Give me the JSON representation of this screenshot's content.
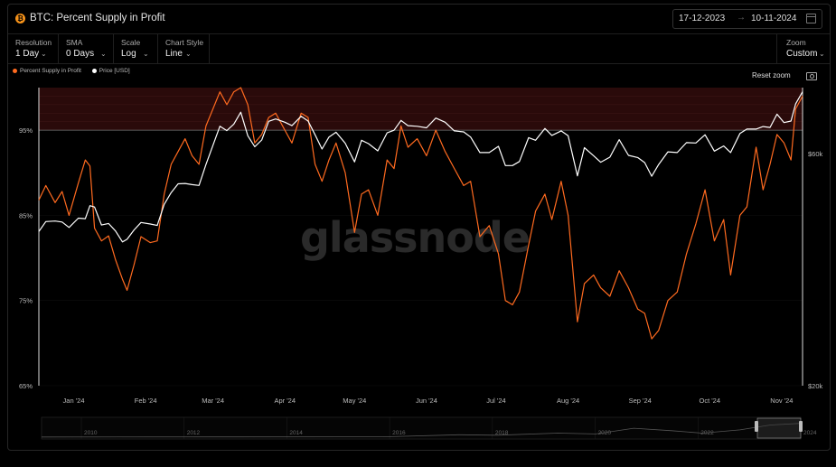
{
  "header": {
    "asset_icon": "bitcoin-icon",
    "title": "BTC: Percent Supply in Profit",
    "date_start": "17-12-2023",
    "date_arrow": "→",
    "date_end": "10-11-2024"
  },
  "controls": {
    "resolution": {
      "label": "Resolution",
      "value": "1 Day"
    },
    "sma": {
      "label": "SMA",
      "value": "0 Days"
    },
    "scale": {
      "label": "Scale",
      "value": "Log"
    },
    "chart_style": {
      "label": "Chart Style",
      "value": "Line"
    },
    "zoom": {
      "label": "Zoom",
      "value": "Custom"
    }
  },
  "actions": {
    "reset_zoom": "Reset zoom"
  },
  "watermark": "glassnode",
  "colors": {
    "profit_line": "#ff6a1f",
    "price_line": "#ffffff",
    "band_fill": "#2a0a0a"
  },
  "chart_data": {
    "type": "line",
    "title": "BTC: Percent Supply in Profit",
    "x_axis": {
      "type": "date",
      "range": [
        "2023-12-17",
        "2024-11-10"
      ],
      "tick_labels": [
        "Jan '24",
        "Feb '24",
        "Mar '24",
        "Apr '24",
        "May '24",
        "Jun '24",
        "Jul '24",
        "Aug '24",
        "Sep '24",
        "Oct '24",
        "Nov '24"
      ],
      "tick_dates": [
        "2024-01-01",
        "2024-02-01",
        "2024-03-01",
        "2024-04-01",
        "2024-05-01",
        "2024-06-01",
        "2024-07-01",
        "2024-08-01",
        "2024-09-01",
        "2024-10-01",
        "2024-11-01"
      ]
    },
    "y_left": {
      "ticks": [
        65,
        75,
        85,
        95
      ],
      "tick_labels": [
        "65%",
        "75%",
        "85%",
        "95%"
      ],
      "range": [
        65,
        100
      ]
    },
    "y_right": {
      "scale": "log",
      "ticks": [
        20000,
        60000
      ],
      "tick_labels": [
        "$20k",
        "$60k"
      ],
      "range": [
        20000,
        82000
      ]
    },
    "band": {
      "from": 95,
      "to": 100
    },
    "legend_position": "top-left",
    "series": [
      {
        "name": "Percent Supply in Profit",
        "axis": "left",
        "color": "#ff6a1f",
        "points": [
          [
            "2023-12-17",
            86.8
          ],
          [
            "2023-12-20",
            88.5
          ],
          [
            "2023-12-24",
            86.5
          ],
          [
            "2023-12-27",
            87.8
          ],
          [
            "2023-12-30",
            85.0
          ],
          [
            "2024-01-03",
            88.8
          ],
          [
            "2024-01-06",
            91.5
          ],
          [
            "2024-01-08",
            90.8
          ],
          [
            "2024-01-10",
            83.5
          ],
          [
            "2024-01-13",
            82.0
          ],
          [
            "2024-01-16",
            82.6
          ],
          [
            "2024-01-19",
            79.8
          ],
          [
            "2024-01-22",
            77.5
          ],
          [
            "2024-01-24",
            76.2
          ],
          [
            "2024-01-27",
            79.2
          ],
          [
            "2024-01-30",
            82.5
          ],
          [
            "2024-02-03",
            81.8
          ],
          [
            "2024-02-06",
            82.0
          ],
          [
            "2024-02-09",
            87.5
          ],
          [
            "2024-02-12",
            91.0
          ],
          [
            "2024-02-15",
            92.5
          ],
          [
            "2024-02-18",
            94.0
          ],
          [
            "2024-02-21",
            92.0
          ],
          [
            "2024-02-24",
            91.0
          ],
          [
            "2024-02-27",
            95.5
          ],
          [
            "2024-03-01",
            97.5
          ],
          [
            "2024-03-04",
            99.5
          ],
          [
            "2024-03-07",
            98.0
          ],
          [
            "2024-03-10",
            99.5
          ],
          [
            "2024-03-13",
            100.0
          ],
          [
            "2024-03-16",
            98.0
          ],
          [
            "2024-03-19",
            93.5
          ],
          [
            "2024-03-22",
            94.5
          ],
          [
            "2024-03-25",
            96.5
          ],
          [
            "2024-03-28",
            97.0
          ],
          [
            "2024-04-01",
            95.0
          ],
          [
            "2024-04-04",
            93.5
          ],
          [
            "2024-04-08",
            97.0
          ],
          [
            "2024-04-11",
            96.5
          ],
          [
            "2024-04-14",
            91.0
          ],
          [
            "2024-04-17",
            89.0
          ],
          [
            "2024-04-20",
            91.5
          ],
          [
            "2024-04-23",
            93.5
          ],
          [
            "2024-04-27",
            90.0
          ],
          [
            "2024-05-01",
            83.0
          ],
          [
            "2024-05-04",
            87.5
          ],
          [
            "2024-05-07",
            88.0
          ],
          [
            "2024-05-11",
            85.0
          ],
          [
            "2024-05-15",
            91.5
          ],
          [
            "2024-05-18",
            90.5
          ],
          [
            "2024-05-21",
            95.5
          ],
          [
            "2024-05-24",
            93.0
          ],
          [
            "2024-05-28",
            94.0
          ],
          [
            "2024-06-01",
            92.0
          ],
          [
            "2024-06-05",
            95.0
          ],
          [
            "2024-06-09",
            92.5
          ],
          [
            "2024-06-13",
            90.5
          ],
          [
            "2024-06-17",
            88.5
          ],
          [
            "2024-06-20",
            89.0
          ],
          [
            "2024-06-24",
            82.5
          ],
          [
            "2024-06-28",
            83.8
          ],
          [
            "2024-07-02",
            80.5
          ],
          [
            "2024-07-05",
            75.0
          ],
          [
            "2024-07-08",
            74.5
          ],
          [
            "2024-07-11",
            76.0
          ],
          [
            "2024-07-15",
            81.5
          ],
          [
            "2024-07-18",
            85.5
          ],
          [
            "2024-07-22",
            87.5
          ],
          [
            "2024-07-25",
            84.5
          ],
          [
            "2024-07-29",
            89.0
          ],
          [
            "2024-08-01",
            85.0
          ],
          [
            "2024-08-05",
            72.5
          ],
          [
            "2024-08-08",
            77.0
          ],
          [
            "2024-08-12",
            78.0
          ],
          [
            "2024-08-15",
            76.5
          ],
          [
            "2024-08-19",
            75.5
          ],
          [
            "2024-08-23",
            78.5
          ],
          [
            "2024-08-27",
            76.5
          ],
          [
            "2024-08-31",
            74.0
          ],
          [
            "2024-09-03",
            73.5
          ],
          [
            "2024-09-06",
            70.5
          ],
          [
            "2024-09-09",
            71.5
          ],
          [
            "2024-09-13",
            75.0
          ],
          [
            "2024-09-17",
            76.0
          ],
          [
            "2024-09-21",
            80.5
          ],
          [
            "2024-09-25",
            84.0
          ],
          [
            "2024-09-29",
            88.0
          ],
          [
            "2024-10-03",
            82.0
          ],
          [
            "2024-10-07",
            84.5
          ],
          [
            "2024-10-10",
            78.0
          ],
          [
            "2024-10-14",
            85.0
          ],
          [
            "2024-10-17",
            86.0
          ],
          [
            "2024-10-21",
            93.0
          ],
          [
            "2024-10-24",
            88.0
          ],
          [
            "2024-10-27",
            91.0
          ],
          [
            "2024-10-30",
            94.5
          ],
          [
            "2024-11-02",
            93.5
          ],
          [
            "2024-11-05",
            91.5
          ],
          [
            "2024-11-07",
            97.5
          ],
          [
            "2024-11-10",
            99.0
          ]
        ]
      },
      {
        "name": "Price [USD]",
        "axis": "right",
        "color": "#ffffff",
        "points": [
          [
            "2023-12-17",
            41500
          ],
          [
            "2023-12-20",
            43500
          ],
          [
            "2023-12-24",
            43600
          ],
          [
            "2023-12-27",
            43400
          ],
          [
            "2023-12-30",
            42300
          ],
          [
            "2024-01-03",
            44200
          ],
          [
            "2024-01-06",
            44100
          ],
          [
            "2024-01-08",
            46900
          ],
          [
            "2024-01-10",
            46600
          ],
          [
            "2024-01-13",
            42800
          ],
          [
            "2024-01-16",
            43100
          ],
          [
            "2024-01-19",
            41600
          ],
          [
            "2024-01-22",
            39500
          ],
          [
            "2024-01-24",
            40000
          ],
          [
            "2024-01-27",
            41800
          ],
          [
            "2024-01-30",
            43300
          ],
          [
            "2024-02-03",
            43000
          ],
          [
            "2024-02-06",
            42700
          ],
          [
            "2024-02-09",
            47200
          ],
          [
            "2024-02-12",
            49900
          ],
          [
            "2024-02-15",
            52000
          ],
          [
            "2024-02-18",
            52100
          ],
          [
            "2024-02-21",
            51800
          ],
          [
            "2024-02-24",
            51600
          ],
          [
            "2024-02-27",
            57000
          ],
          [
            "2024-03-01",
            62400
          ],
          [
            "2024-03-04",
            68300
          ],
          [
            "2024-03-07",
            66900
          ],
          [
            "2024-03-10",
            69000
          ],
          [
            "2024-03-13",
            73000
          ],
          [
            "2024-03-16",
            65300
          ],
          [
            "2024-03-19",
            62000
          ],
          [
            "2024-03-22",
            64000
          ],
          [
            "2024-03-25",
            69900
          ],
          [
            "2024-03-28",
            70700
          ],
          [
            "2024-04-01",
            69600
          ],
          [
            "2024-04-04",
            68500
          ],
          [
            "2024-04-08",
            71600
          ],
          [
            "2024-04-11",
            70000
          ],
          [
            "2024-04-14",
            65600
          ],
          [
            "2024-04-17",
            61300
          ],
          [
            "2024-04-20",
            64900
          ],
          [
            "2024-04-23",
            66400
          ],
          [
            "2024-04-27",
            63000
          ],
          [
            "2024-05-01",
            57700
          ],
          [
            "2024-05-04",
            63900
          ],
          [
            "2024-05-07",
            62900
          ],
          [
            "2024-05-11",
            60800
          ],
          [
            "2024-05-15",
            66200
          ],
          [
            "2024-05-18",
            67000
          ],
          [
            "2024-05-21",
            70200
          ],
          [
            "2024-05-24",
            68500
          ],
          [
            "2024-05-28",
            68300
          ],
          [
            "2024-06-01",
            67800
          ],
          [
            "2024-06-05",
            71000
          ],
          [
            "2024-06-09",
            69600
          ],
          [
            "2024-06-13",
            66800
          ],
          [
            "2024-06-17",
            66500
          ],
          [
            "2024-06-20",
            64900
          ],
          [
            "2024-06-24",
            60300
          ],
          [
            "2024-06-28",
            60300
          ],
          [
            "2024-07-02",
            62100
          ],
          [
            "2024-07-05",
            56700
          ],
          [
            "2024-07-08",
            56700
          ],
          [
            "2024-07-11",
            57800
          ],
          [
            "2024-07-15",
            64700
          ],
          [
            "2024-07-18",
            63900
          ],
          [
            "2024-07-22",
            67600
          ],
          [
            "2024-07-25",
            65400
          ],
          [
            "2024-07-29",
            66800
          ],
          [
            "2024-08-01",
            65300
          ],
          [
            "2024-08-05",
            54000
          ],
          [
            "2024-08-08",
            61700
          ],
          [
            "2024-08-12",
            59400
          ],
          [
            "2024-08-15",
            57600
          ],
          [
            "2024-08-19",
            59000
          ],
          [
            "2024-08-23",
            64100
          ],
          [
            "2024-08-27",
            59500
          ],
          [
            "2024-08-31",
            58900
          ],
          [
            "2024-09-03",
            57500
          ],
          [
            "2024-09-06",
            53900
          ],
          [
            "2024-09-09",
            57000
          ],
          [
            "2024-09-13",
            60500
          ],
          [
            "2024-09-17",
            60300
          ],
          [
            "2024-09-21",
            63200
          ],
          [
            "2024-09-25",
            63100
          ],
          [
            "2024-09-29",
            65600
          ],
          [
            "2024-10-03",
            60700
          ],
          [
            "2024-10-07",
            62200
          ],
          [
            "2024-10-10",
            60300
          ],
          [
            "2024-10-14",
            66000
          ],
          [
            "2024-10-17",
            67400
          ],
          [
            "2024-10-21",
            67400
          ],
          [
            "2024-10-24",
            68200
          ],
          [
            "2024-10-27",
            67900
          ],
          [
            "2024-10-30",
            72300
          ],
          [
            "2024-11-02",
            69500
          ],
          [
            "2024-11-05",
            70000
          ],
          [
            "2024-11-07",
            75900
          ],
          [
            "2024-11-10",
            80400
          ]
        ]
      }
    ],
    "navigator": {
      "year_labels": [
        "2010",
        "2012",
        "2014",
        "2016",
        "2018",
        "2020",
        "2022",
        "2024"
      ],
      "selected_range": [
        "2023-12-17",
        "2024-11-10"
      ]
    }
  }
}
